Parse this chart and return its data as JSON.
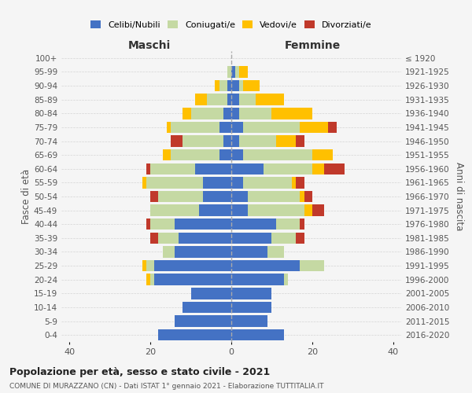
{
  "age_groups": [
    "0-4",
    "5-9",
    "10-14",
    "15-19",
    "20-24",
    "25-29",
    "30-34",
    "35-39",
    "40-44",
    "45-49",
    "50-54",
    "55-59",
    "60-64",
    "65-69",
    "70-74",
    "75-79",
    "80-84",
    "85-89",
    "90-94",
    "95-99",
    "100+"
  ],
  "birth_years": [
    "2016-2020",
    "2011-2015",
    "2006-2010",
    "2001-2005",
    "1996-2000",
    "1991-1995",
    "1986-1990",
    "1981-1985",
    "1976-1980",
    "1971-1975",
    "1966-1970",
    "1961-1965",
    "1956-1960",
    "1951-1955",
    "1946-1950",
    "1941-1945",
    "1936-1940",
    "1931-1935",
    "1926-1930",
    "1921-1925",
    "≤ 1920"
  ],
  "male": {
    "celibi": [
      18,
      14,
      12,
      10,
      19,
      19,
      14,
      13,
      14,
      8,
      7,
      7,
      9,
      3,
      2,
      3,
      2,
      1,
      1,
      0,
      0
    ],
    "coniugati": [
      0,
      0,
      0,
      0,
      1,
      2,
      3,
      5,
      6,
      12,
      11,
      14,
      11,
      12,
      10,
      12,
      8,
      5,
      2,
      1,
      0
    ],
    "vedovi": [
      0,
      0,
      0,
      0,
      1,
      1,
      0,
      0,
      0,
      0,
      0,
      1,
      0,
      2,
      0,
      1,
      2,
      3,
      1,
      0,
      0
    ],
    "divorziati": [
      0,
      0,
      0,
      0,
      0,
      0,
      0,
      2,
      1,
      0,
      2,
      0,
      1,
      0,
      3,
      0,
      0,
      0,
      0,
      0,
      0
    ]
  },
  "female": {
    "nubili": [
      13,
      9,
      10,
      10,
      13,
      17,
      9,
      10,
      11,
      4,
      4,
      3,
      8,
      3,
      2,
      3,
      2,
      2,
      2,
      1,
      0
    ],
    "coniugate": [
      0,
      0,
      0,
      0,
      1,
      6,
      4,
      6,
      6,
      14,
      13,
      12,
      12,
      17,
      9,
      14,
      8,
      4,
      1,
      1,
      0
    ],
    "vedove": [
      0,
      0,
      0,
      0,
      0,
      0,
      0,
      0,
      0,
      2,
      1,
      1,
      3,
      5,
      5,
      7,
      10,
      7,
      4,
      2,
      0
    ],
    "divorziate": [
      0,
      0,
      0,
      0,
      0,
      0,
      0,
      2,
      1,
      3,
      2,
      2,
      5,
      0,
      2,
      2,
      0,
      0,
      0,
      0,
      0
    ]
  },
  "colors": {
    "celibi": "#4472c4",
    "coniugati": "#c5d9a3",
    "vedovi": "#ffc000",
    "divorziati": "#c0392b"
  },
  "title": "Popolazione per età, sesso e stato civile - 2021",
  "subtitle": "COMUNE DI MURAZZANO (CN) - Dati ISTAT 1° gennaio 2021 - Elaborazione TUTTITALIA.IT",
  "xlabel_left": "Maschi",
  "xlabel_right": "Femmine",
  "ylabel_left": "Fasce di età",
  "ylabel_right": "Anni di nascita",
  "xlim": 42,
  "bg_color": "#f5f5f5",
  "grid_color": "#cccccc"
}
